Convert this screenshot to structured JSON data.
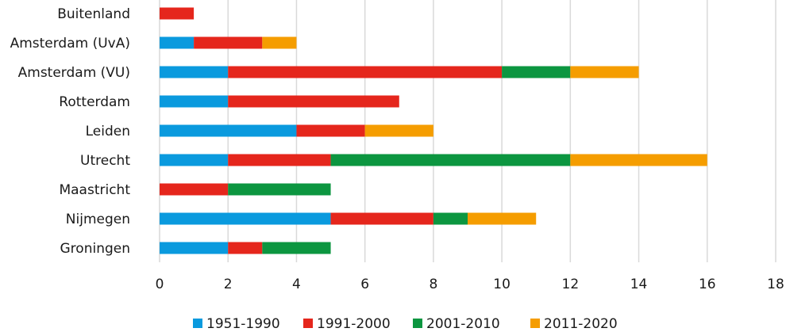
{
  "chart_data": {
    "type": "bar",
    "orientation": "horizontal",
    "stacked": true,
    "categories": [
      "Buitenland",
      "Amsterdam (UvA)",
      "Amsterdam (VU)",
      "Rotterdam",
      "Leiden",
      "Utrecht",
      "Maastricht",
      "Nijmegen",
      "Groningen"
    ],
    "series": [
      {
        "name": "1951-1990",
        "color": "#0a9ade",
        "values": [
          0,
          1,
          2,
          2,
          4,
          2,
          0,
          5,
          2
        ]
      },
      {
        "name": "1991-2000",
        "color": "#e5261c",
        "values": [
          1,
          2,
          8,
          5,
          2,
          3,
          2,
          3,
          1
        ]
      },
      {
        "name": "2001-2010",
        "color": "#0c9640",
        "values": [
          0,
          0,
          2,
          0,
          0,
          7,
          3,
          1,
          2
        ]
      },
      {
        "name": "2011-2020",
        "color": "#f59d00",
        "values": [
          0,
          1,
          2,
          0,
          2,
          4,
          0,
          2,
          0
        ]
      }
    ],
    "xlim": [
      0,
      18
    ],
    "xticks": [
      0,
      2,
      4,
      6,
      8,
      10,
      12,
      14,
      16,
      18
    ],
    "xtick_labels": [
      "0",
      "2",
      "4",
      "6",
      "8",
      "10",
      "12",
      "14",
      "16",
      "18"
    ],
    "grid": "vertical",
    "legend": "bottom",
    "title": "",
    "xlabel": "",
    "ylabel": ""
  }
}
